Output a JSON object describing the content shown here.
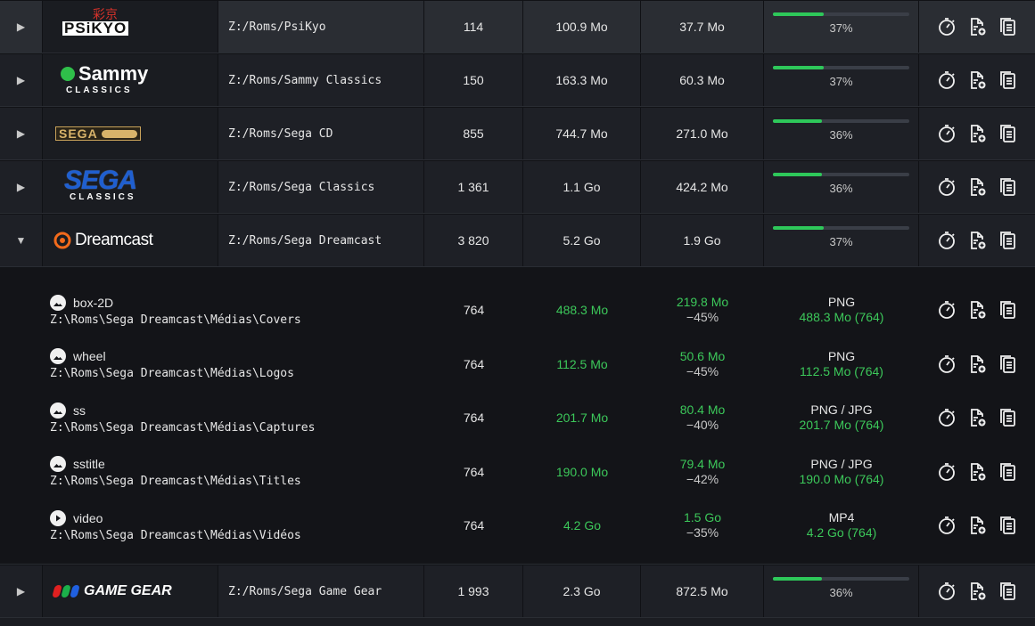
{
  "colors": {
    "accent": "#2ec85a",
    "background": "#1b1d22",
    "expanded_bg": "#131418"
  },
  "rows_top": [
    {
      "name": "psikyo",
      "logo_text": "PSiKYO",
      "logo_kanji": "彩京",
      "path": "Z:/Roms/PsiKyo",
      "count": "114",
      "size": "100.9 Mo",
      "compressed": "37.7 Mo",
      "progress": 0.37,
      "progress_label": "37%",
      "toggle": "▶"
    },
    {
      "name": "sammy",
      "logo_text": "Sammy",
      "logo_sub": "CLASSICS",
      "path": "Z:/Roms/Sammy Classics",
      "count": "150",
      "size": "163.3 Mo",
      "compressed": "60.3 Mo",
      "progress": 0.37,
      "progress_label": "37%",
      "toggle": "▶"
    },
    {
      "name": "sega-cd",
      "logo_text": "SEGA",
      "path": "Z:/Roms/Sega CD",
      "count": "855",
      "size": "744.7 Mo",
      "compressed": "271.0 Mo",
      "progress": 0.36,
      "progress_label": "36%",
      "toggle": "▶"
    },
    {
      "name": "sega-classics",
      "logo_text": "SEGA",
      "logo_sub": "CLASSICS",
      "path": "Z:/Roms/Sega Classics",
      "count": "1 361",
      "size": "1.1 Go",
      "compressed": "424.2 Mo",
      "progress": 0.36,
      "progress_label": "36%",
      "toggle": "▶"
    },
    {
      "name": "dreamcast",
      "logo_text": "Dreamcast",
      "path": "Z:/Roms/Sega Dreamcast",
      "count": "3 820",
      "size": "5.2 Go",
      "compressed": "1.9 Go",
      "progress": 0.37,
      "progress_label": "37%",
      "toggle": "▼"
    }
  ],
  "media": [
    {
      "label": "box-2D",
      "kind": "image",
      "path": "Z:\\Roms\\Sega Dreamcast\\Médias\\Covers",
      "count": "764",
      "size": "488.3 Mo",
      "comp_size": "219.8 Mo",
      "comp_pct": "−45%",
      "format": "PNG",
      "format_detail": "488.3 Mo (764)"
    },
    {
      "label": "wheel",
      "kind": "image",
      "path": "Z:\\Roms\\Sega Dreamcast\\Médias\\Logos",
      "count": "764",
      "size": "112.5 Mo",
      "comp_size": "50.6 Mo",
      "comp_pct": "−45%",
      "format": "PNG",
      "format_detail": "112.5 Mo (764)"
    },
    {
      "label": "ss",
      "kind": "image",
      "path": "Z:\\Roms\\Sega Dreamcast\\Médias\\Captures",
      "count": "764",
      "size": "201.7 Mo",
      "comp_size": "80.4 Mo",
      "comp_pct": "−40%",
      "format": "PNG / JPG",
      "format_detail": "201.7 Mo (764)"
    },
    {
      "label": "sstitle",
      "kind": "image",
      "path": "Z:\\Roms\\Sega Dreamcast\\Médias\\Titles",
      "count": "764",
      "size": "190.0 Mo",
      "comp_size": "79.4 Mo",
      "comp_pct": "−42%",
      "format": "PNG / JPG",
      "format_detail": "190.0 Mo (764)"
    },
    {
      "label": "video",
      "kind": "video",
      "path": "Z:\\Roms\\Sega Dreamcast\\Médias\\Vidéos",
      "count": "764",
      "size": "4.2 Go",
      "comp_size": "1.5 Go",
      "comp_pct": "−35%",
      "format": "MP4",
      "format_detail": "4.2 Go (764)"
    }
  ],
  "row_bottom": {
    "name": "game-gear",
    "logo_text": "GAME GEAR",
    "path": "Z:/Roms/Sega Game Gear",
    "count": "1 993",
    "size": "2.3 Go",
    "compressed": "872.5 Mo",
    "progress": 0.36,
    "progress_label": "36%",
    "toggle": "▶"
  },
  "icons": [
    "timer-icon",
    "file-add-icon",
    "copy-icon"
  ]
}
